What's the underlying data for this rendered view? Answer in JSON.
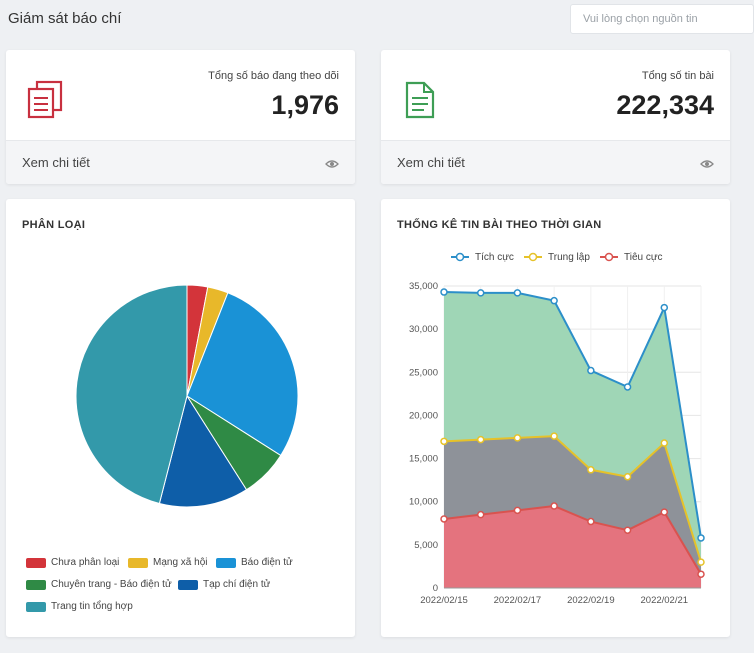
{
  "header": {
    "title": "Giám sát báo chí",
    "source_placeholder": "Vui lòng chọn nguồn tin"
  },
  "stats": [
    {
      "label": "Tổng số báo đang theo dõi",
      "value": "1,976",
      "link": "Xem chi tiết",
      "icon": "documents-icon",
      "color": "#c8303f"
    },
    {
      "label": "Tổng số tin bài",
      "value": "222,334",
      "link": "Xem chi tiết",
      "icon": "file-text-icon",
      "color": "#3e9e55"
    }
  ],
  "pie_panel": {
    "title": "PHÂN LOẠI"
  },
  "line_panel": {
    "title": "THỐNG KÊ TIN BÀI THEO THỜI GIAN"
  },
  "chart_data": [
    {
      "type": "pie",
      "title": "PHÂN LOẠI",
      "legend_position": "bottom",
      "slices": [
        {
          "label": "Chưa phân loại",
          "value": 3,
          "color": "#d3343a"
        },
        {
          "label": "Mạng xã hội",
          "value": 3,
          "color": "#e8b82a"
        },
        {
          "label": "Báo điện tử",
          "value": 28,
          "color": "#1a92d6"
        },
        {
          "label": "Chuyên trang - Báo điện tử",
          "value": 7,
          "color": "#2f8a45"
        },
        {
          "label": "Tạp chí điện tử",
          "value": 13,
          "color": "#0e5ea8"
        },
        {
          "label": "Trang tin tổng hợp",
          "value": 46,
          "color": "#3399aa"
        }
      ]
    },
    {
      "type": "area",
      "title": "THỐNG KÊ TIN BÀI THEO THỜI GIAN",
      "legend_position": "top",
      "stacked": true,
      "ylim": [
        0,
        35000
      ],
      "yticks": [
        0,
        5000,
        10000,
        15000,
        20000,
        25000,
        30000,
        35000
      ],
      "ytick_labels": [
        "0",
        "5,000",
        "10,000",
        "15,000",
        "20,000",
        "25,000",
        "30,000",
        "35,000"
      ],
      "x": [
        "2022/02/15",
        "2022/02/16",
        "2022/02/17",
        "2022/02/18",
        "2022/02/19",
        "2022/02/20",
        "2022/02/21",
        "2022/02/22"
      ],
      "xtick_labels": [
        "2022/02/15",
        "2022/02/17",
        "2022/02/19",
        "2022/02/21"
      ],
      "grid": true,
      "series": [
        {
          "name": "Tiêu cực",
          "color": "#d9534f",
          "fill": "#e4737e",
          "values": [
            8000,
            8500,
            9000,
            9500,
            7700,
            6700,
            8800,
            1600
          ]
        },
        {
          "name": "Trung lập",
          "color": "#e6c229",
          "fill": "#8e9299",
          "values": [
            9000,
            8700,
            8400,
            8100,
            6000,
            6200,
            8000,
            1400
          ]
        },
        {
          "name": "Tích cực",
          "color": "#2c8fc9",
          "fill": "#9fd6b6",
          "values": [
            17300,
            17000,
            16800,
            15700,
            11500,
            10400,
            15700,
            2800
          ]
        }
      ]
    }
  ]
}
